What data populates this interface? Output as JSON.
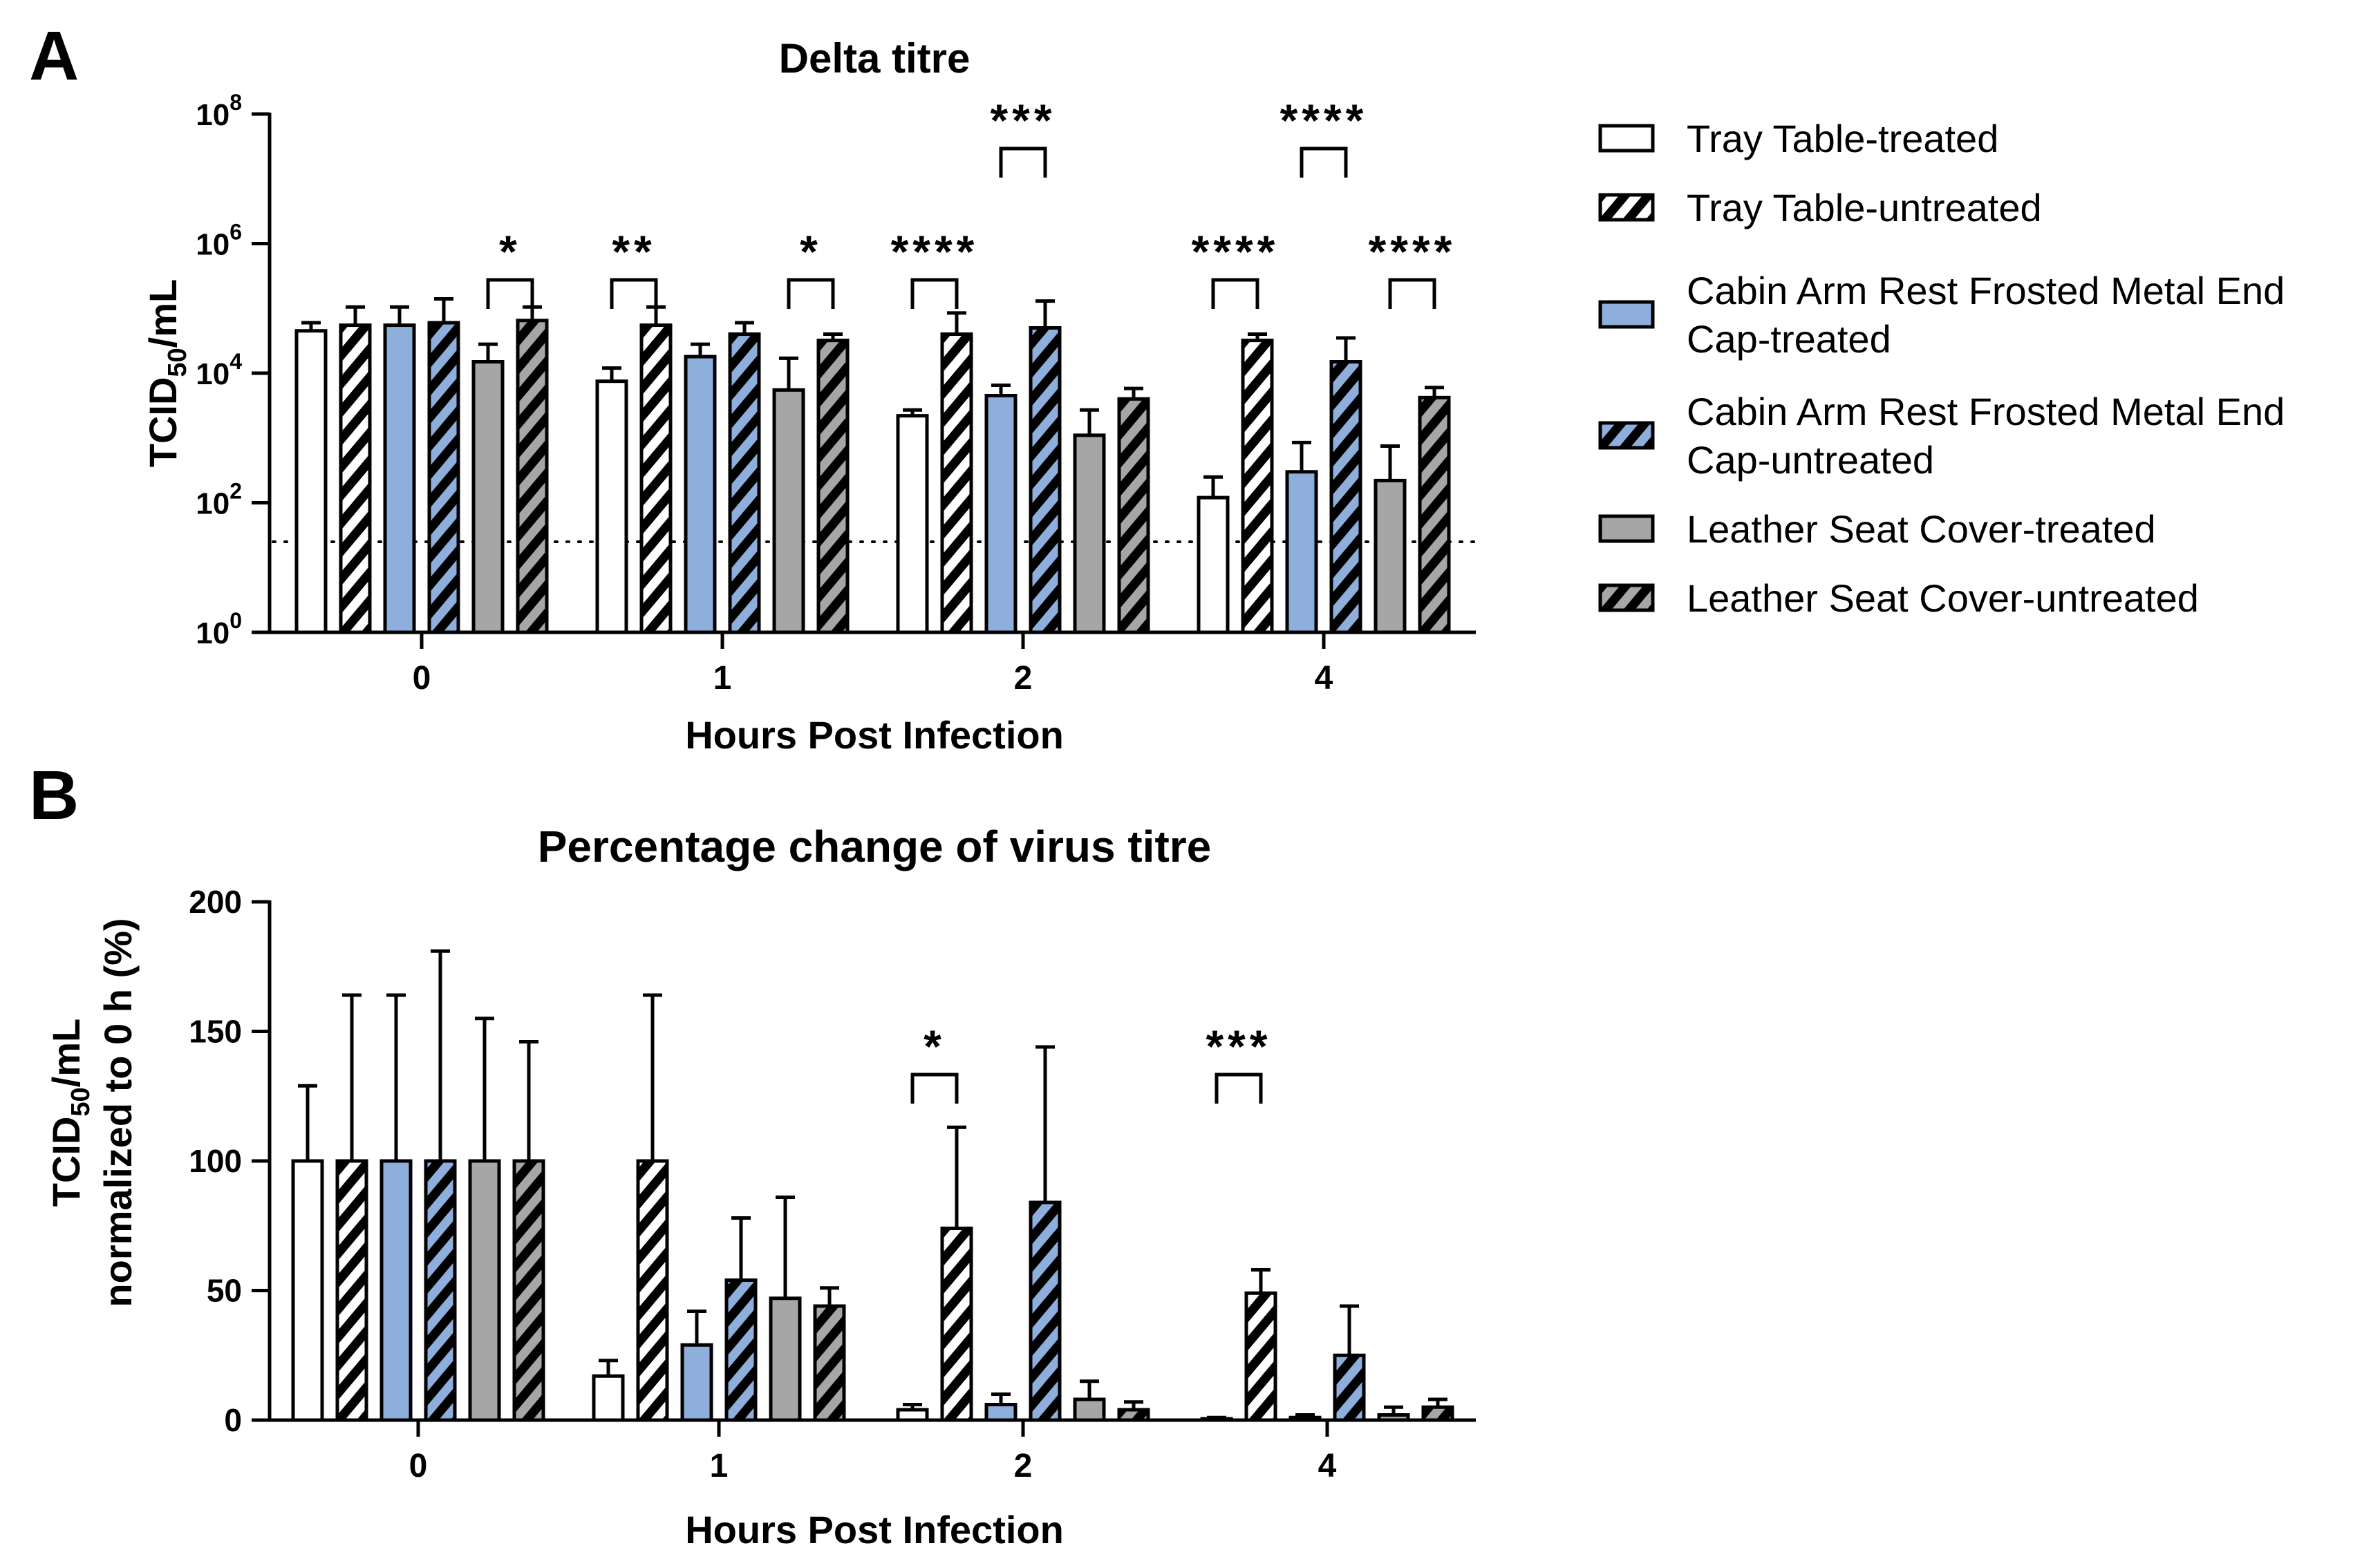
{
  "panel_labels": [
    "A",
    "B"
  ],
  "legend": [
    {
      "lines": [
        "Tray Table-treated"
      ],
      "pattern": "open"
    },
    {
      "lines": [
        "Tray Table-untreated"
      ],
      "pattern": "hatch"
    },
    {
      "lines": [
        "Cabin Arm Rest Frosted Metal End",
        "Cap-treated"
      ],
      "pattern": "blue"
    },
    {
      "lines": [
        "Cabin Arm Rest Frosted Metal End",
        "Cap-untreated"
      ],
      "pattern": "blue-hatch"
    },
    {
      "lines": [
        "Leather Seat Cover-treated"
      ],
      "pattern": "gray"
    },
    {
      "lines": [
        "Leather Seat Cover-untreated"
      ],
      "pattern": "gray-hatch"
    }
  ],
  "colors": {
    "white": "#ffffff",
    "blue": "#8eaedb",
    "gray": "#a6a6a6",
    "ink": "#000000"
  },
  "chart_data": [
    {
      "type": "bar",
      "scale": "log10",
      "title": "Delta titre",
      "xlabel": "Hours Post Infection",
      "ylabel_main": "TCID",
      "ylabel_sub": "50",
      "ylabel_tail": "/mL",
      "ylim_log": [
        0,
        8
      ],
      "yticks_exp": [
        0,
        2,
        4,
        6,
        8
      ],
      "ytick_base": "10",
      "categories": [
        "0",
        "1",
        "2",
        "4"
      ],
      "detection_limit": 25,
      "series": [
        {
          "name": "Tray Table-treated",
          "values": [
            45000,
            7500,
            2200,
            120
          ],
          "errors": [
            60000,
            12000,
            2700,
            250
          ]
        },
        {
          "name": "Tray Table-untreated",
          "values": [
            55000,
            55000,
            40000,
            32000
          ],
          "errors": [
            105000,
            105000,
            85000,
            40000
          ]
        },
        {
          "name": "Cabin Arm Rest Frosted Metal End Cap-treated",
          "values": [
            55000,
            18000,
            4500,
            300
          ],
          "errors": [
            105000,
            28000,
            6500,
            850
          ]
        },
        {
          "name": "Cabin Arm Rest Frosted Metal End Cap-untreated",
          "values": [
            60000,
            40000,
            50000,
            15000
          ],
          "errors": [
            140000,
            60000,
            130000,
            35000
          ]
        },
        {
          "name": "Leather Seat Cover-treated",
          "values": [
            15000,
            5500,
            1100,
            220
          ],
          "errors": [
            28000,
            17000,
            2700,
            750
          ]
        },
        {
          "name": "Leather Seat Cover-untreated",
          "values": [
            65000,
            32000,
            4000,
            4200
          ],
          "errors": [
            105000,
            40000,
            5800,
            6000
          ]
        }
      ],
      "significance": [
        {
          "stars": "*",
          "group": 0,
          "from": 4,
          "to": 5,
          "level": 0
        },
        {
          "stars": "**",
          "group": 1,
          "from": 0,
          "to": 1,
          "level": 0
        },
        {
          "stars": "*",
          "group": 1,
          "from": 4,
          "to": 5,
          "level": 0
        },
        {
          "stars": "****",
          "group": 2,
          "from": 0,
          "to": 1,
          "level": 0
        },
        {
          "stars": "***",
          "group": 2,
          "from": 2,
          "to": 3,
          "level": 1
        },
        {
          "stars": "****",
          "group": 3,
          "from": 0,
          "to": 1,
          "level": 0
        },
        {
          "stars": "****",
          "group": 3,
          "from": 2,
          "to": 3,
          "level": 1
        },
        {
          "stars": "****",
          "group": 3,
          "from": 4,
          "to": 5,
          "level": 0
        }
      ]
    },
    {
      "type": "bar",
      "scale": "linear",
      "title": "Percentage change of virus titre",
      "xlabel": "Hours Post Infection",
      "ylabel_main": "TCID",
      "ylabel_sub": "50",
      "ylabel_tail": "/mL",
      "ylabel_line2": "normalized to 0 h (%)",
      "ylim": [
        0,
        200
      ],
      "yticks": [
        0,
        50,
        100,
        150,
        200
      ],
      "categories": [
        "0",
        "1",
        "2",
        "4"
      ],
      "series": [
        {
          "name": "Tray Table-treated",
          "values": [
            100,
            17,
            4,
            0.5
          ],
          "errors": [
            129,
            23,
            6,
            1
          ]
        },
        {
          "name": "Tray Table-untreated",
          "values": [
            100,
            100,
            74,
            49
          ],
          "errors": [
            164,
            164,
            113,
            58
          ]
        },
        {
          "name": "Cabin Arm Rest Frosted Metal End Cap-treated",
          "values": [
            100,
            29,
            6,
            1
          ],
          "errors": [
            164,
            42,
            10,
            2
          ]
        },
        {
          "name": "Cabin Arm Rest Frosted Metal End Cap-untreated",
          "values": [
            100,
            54,
            84,
            25
          ],
          "errors": [
            181,
            78,
            144,
            44
          ]
        },
        {
          "name": "Leather Seat Cover-treated",
          "values": [
            100,
            47,
            8,
            2
          ],
          "errors": [
            155,
            86,
            15,
            5
          ]
        },
        {
          "name": "Leather Seat Cover-untreated",
          "values": [
            100,
            44,
            4,
            5
          ],
          "errors": [
            146,
            51,
            7,
            8
          ]
        }
      ],
      "significance": [
        {
          "stars": "*",
          "group": 2,
          "from": 0,
          "to": 1,
          "level": 0
        },
        {
          "stars": "***",
          "group": 3,
          "from": 0,
          "to": 1,
          "level": 0
        }
      ]
    }
  ]
}
